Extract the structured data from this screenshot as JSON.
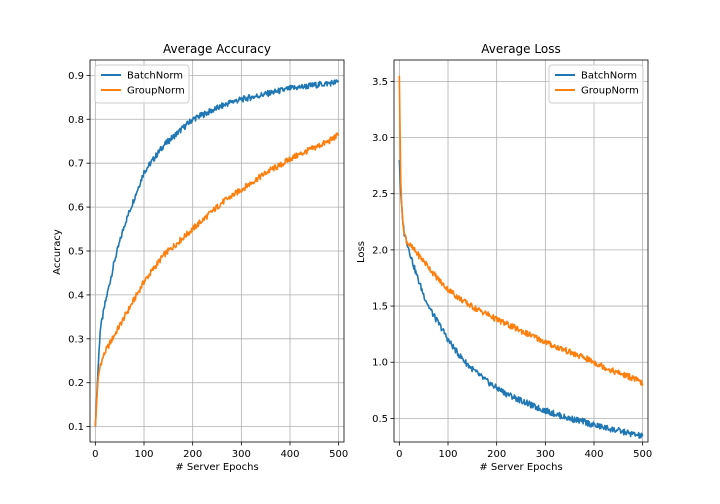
{
  "colors": {
    "batchnorm": "#1f77b4",
    "groupnorm": "#ff7f0e",
    "grid": "#b0b0b0",
    "legend_border": "#cccccc"
  },
  "chart_data": [
    {
      "type": "line",
      "title": "Average Accuracy",
      "xlabel": "# Server Epochs",
      "ylabel": "Accuracy",
      "xlim": [
        -11,
        511
      ],
      "ylim": [
        0.065,
        0.935
      ],
      "xticks": [
        0,
        100,
        200,
        300,
        400,
        500
      ],
      "yticks": [
        0.1,
        0.2,
        0.3,
        0.4,
        0.5,
        0.6,
        0.7,
        0.8,
        0.9
      ],
      "ytick_labels": [
        "0.1",
        "0.2",
        "0.3",
        "0.4",
        "0.5",
        "0.6",
        "0.7",
        "0.8",
        "0.9"
      ],
      "grid": true,
      "legend_position": "upper-left",
      "series": [
        {
          "name": "BatchNorm",
          "color_key": "batchnorm",
          "x": [
            0,
            5,
            10,
            20,
            30,
            40,
            50,
            60,
            70,
            80,
            90,
            100,
            120,
            140,
            160,
            180,
            200,
            220,
            240,
            260,
            280,
            300,
            320,
            340,
            360,
            380,
            400,
            420,
            440,
            460,
            480,
            500
          ],
          "y": [
            0.1,
            0.22,
            0.32,
            0.38,
            0.43,
            0.48,
            0.52,
            0.56,
            0.59,
            0.62,
            0.65,
            0.68,
            0.71,
            0.74,
            0.76,
            0.78,
            0.8,
            0.81,
            0.82,
            0.83,
            0.84,
            0.845,
            0.85,
            0.855,
            0.86,
            0.865,
            0.87,
            0.873,
            0.876,
            0.879,
            0.882,
            0.885
          ]
        },
        {
          "name": "GroupNorm",
          "color_key": "groupnorm",
          "x": [
            0,
            5,
            10,
            20,
            30,
            40,
            50,
            60,
            70,
            80,
            90,
            100,
            120,
            140,
            160,
            180,
            200,
            220,
            240,
            260,
            280,
            300,
            320,
            340,
            360,
            380,
            400,
            420,
            440,
            460,
            480,
            500
          ],
          "y": [
            0.1,
            0.2,
            0.24,
            0.27,
            0.29,
            0.31,
            0.33,
            0.35,
            0.37,
            0.39,
            0.41,
            0.43,
            0.46,
            0.49,
            0.51,
            0.53,
            0.55,
            0.57,
            0.59,
            0.61,
            0.625,
            0.64,
            0.655,
            0.67,
            0.685,
            0.695,
            0.71,
            0.72,
            0.73,
            0.74,
            0.75,
            0.765
          ]
        }
      ]
    },
    {
      "type": "line",
      "title": "Average Loss",
      "xlabel": "# Server Epochs",
      "ylabel": "Loss",
      "xlim": [
        -11,
        511
      ],
      "ylim": [
        0.29,
        3.69
      ],
      "xticks": [
        0,
        100,
        200,
        300,
        400,
        500
      ],
      "yticks": [
        0.5,
        1.0,
        1.5,
        2.0,
        2.5,
        3.0,
        3.5
      ],
      "ytick_labels": [
        "0.5",
        "1.0",
        "1.5",
        "2.0",
        "2.5",
        "3.0",
        "3.5"
      ],
      "grid": true,
      "legend_position": "upper-right",
      "series": [
        {
          "name": "BatchNorm",
          "color_key": "batchnorm",
          "x": [
            0,
            3,
            6,
            10,
            15,
            20,
            30,
            40,
            50,
            60,
            70,
            80,
            90,
            100,
            120,
            140,
            160,
            180,
            200,
            220,
            240,
            260,
            280,
            300,
            320,
            340,
            360,
            380,
            400,
            420,
            440,
            460,
            480,
            500
          ],
          "y": [
            2.8,
            2.5,
            2.3,
            2.15,
            2.08,
            2.0,
            1.85,
            1.72,
            1.6,
            1.5,
            1.42,
            1.35,
            1.28,
            1.2,
            1.08,
            0.98,
            0.9,
            0.83,
            0.77,
            0.72,
            0.68,
            0.64,
            0.6,
            0.57,
            0.54,
            0.51,
            0.49,
            0.47,
            0.44,
            0.42,
            0.4,
            0.38,
            0.36,
            0.34
          ]
        },
        {
          "name": "GroupNorm",
          "color_key": "groupnorm",
          "x": [
            0,
            1,
            3,
            6,
            10,
            15,
            20,
            30,
            40,
            50,
            60,
            70,
            80,
            90,
            100,
            120,
            140,
            160,
            180,
            200,
            220,
            240,
            260,
            280,
            300,
            320,
            340,
            360,
            380,
            400,
            420,
            440,
            460,
            480,
            500
          ],
          "y": [
            3.55,
            3.2,
            2.6,
            2.3,
            2.15,
            2.08,
            2.05,
            2.0,
            1.95,
            1.9,
            1.85,
            1.79,
            1.74,
            1.69,
            1.65,
            1.58,
            1.52,
            1.47,
            1.43,
            1.38,
            1.34,
            1.3,
            1.26,
            1.22,
            1.18,
            1.14,
            1.11,
            1.07,
            1.04,
            1.0,
            0.96,
            0.92,
            0.89,
            0.86,
            0.81
          ]
        }
      ]
    }
  ]
}
